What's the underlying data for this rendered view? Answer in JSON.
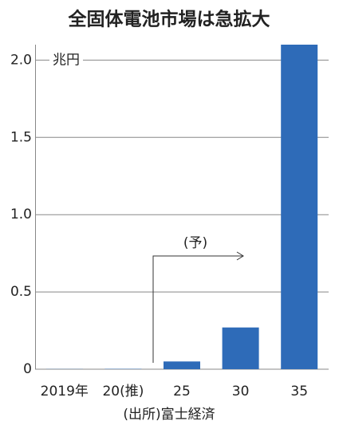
{
  "chart_data": {
    "type": "bar",
    "title": "全固体電池市場は急拡大",
    "unit_label": "兆円",
    "categories": [
      "2019年",
      "20(推)",
      "25",
      "30",
      "35"
    ],
    "values": [
      0.001,
      0.002,
      0.05,
      0.27,
      2.1
    ],
    "color": "#2e6bb8",
    "ylim": [
      0,
      2.1
    ],
    "yticks": [
      0,
      0.5,
      {
        "value": 1,
        "label": "1.0"
      },
      1.5,
      {
        "value": 2,
        "label": "2.0"
      }
    ],
    "grid": true,
    "annotation": "(予)",
    "source": "(出所)富士経済"
  }
}
